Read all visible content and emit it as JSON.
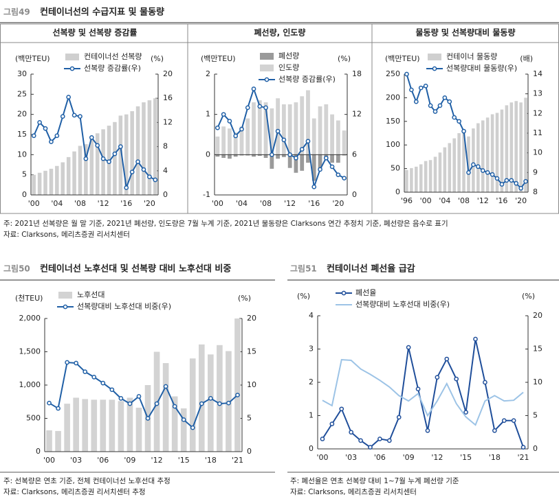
{
  "figures": [
    {
      "label": "그림49",
      "title": "컨테이너선의 수급지표 및 물동량",
      "notes": [
        "주: 2021년 선복량은 월 말 기준, 2021년 폐선량, 인도량은 7월 누계 기준, 2021년 물동량은 Clarksons 연간 추정치 기준, 폐선량은 음수로 표기",
        "자료: Clarksons, 메리츠증권 리서치센터"
      ]
    },
    {
      "label": "그림50",
      "title": "컨테이너선 노후선대 및 선복량 대비 노후선대 비중",
      "notes": [
        "주: 선복량은 연초 기준, 전체 컨테이너선 노후선대 추정",
        "자료: Clarksons, 메리츠증권 리서치센터 추정"
      ]
    },
    {
      "label": "그림51",
      "title": "컨테이너선 폐선율 급감",
      "notes": [
        "주: 폐선율은 연초 선복량 대비 1~7월 누계 폐선량 기준",
        "자료: Clarksons, 메리츠증권 리서치센터"
      ]
    }
  ],
  "chart_data": [
    {
      "type": "combo",
      "title": "선복량 및 선복량 증감률",
      "ylabel": "(백만TEU)",
      "y2label": "(%)",
      "categories": [
        "'00",
        null,
        null,
        null,
        "'04",
        null,
        null,
        null,
        "'08",
        null,
        null,
        null,
        "'12",
        null,
        null,
        null,
        "'16",
        null,
        null,
        null,
        "'20",
        null
      ],
      "ylim": [
        0,
        30
      ],
      "yticks": [
        0,
        5,
        10,
        15,
        20,
        25,
        30
      ],
      "y2lim": [
        0,
        20
      ],
      "y2ticks": [
        0,
        4,
        8,
        12,
        16,
        20
      ],
      "series": [
        {
          "name": "컨테이너선 선복량",
          "type": "bar",
          "color": "#cfcfcf",
          "values": [
            5.0,
            5.5,
            6.0,
            6.5,
            7.2,
            8.1,
            9.4,
            10.8,
            12.2,
            12.6,
            14.1,
            15.3,
            16.3,
            17.2,
            18.1,
            19.7,
            20.0,
            20.8,
            22.0,
            23.0,
            23.5,
            24.0
          ]
        },
        {
          "name": "선복량 증감률(우)",
          "type": "line",
          "axis": "y2",
          "color": "#1f5fa6",
          "values": [
            9.8,
            12.0,
            11.0,
            8.8,
            9.8,
            13.0,
            16.2,
            13.2,
            13.0,
            6.0,
            9.5,
            8.2,
            6.0,
            5.5,
            6.8,
            8.0,
            1.2,
            3.8,
            5.5,
            4.2,
            3.0,
            2.5
          ]
        }
      ]
    },
    {
      "type": "combo",
      "title": "폐선량, 인도량",
      "ylabel": "(백만TEU)",
      "y2label": "(%)",
      "categories": [
        "'00",
        null,
        null,
        null,
        "'04",
        null,
        null,
        null,
        "'08",
        null,
        null,
        null,
        "'12",
        null,
        null,
        null,
        "'16",
        null,
        null,
        null,
        "'20",
        null
      ],
      "ylim": [
        -1,
        2
      ],
      "yticks": [
        -1,
        0,
        1,
        2
      ],
      "y2lim": [
        0,
        18
      ],
      "y2ticks": [
        0,
        6,
        12,
        18
      ],
      "series": [
        {
          "name": "폐선량",
          "type": "bar",
          "color": "#9a9a9a",
          "values": [
            -0.05,
            -0.08,
            -0.1,
            -0.05,
            -0.02,
            -0.02,
            -0.05,
            -0.03,
            -0.08,
            -0.35,
            -0.1,
            -0.06,
            -0.33,
            -0.45,
            -0.4,
            -0.2,
            -0.65,
            -0.4,
            -0.1,
            -0.2,
            -0.2,
            -0.02
          ]
        },
        {
          "name": "인도량",
          "type": "bar",
          "color": "#d3d3d3",
          "values": [
            0.45,
            0.7,
            0.65,
            0.55,
            0.7,
            0.9,
            1.3,
            1.35,
            1.3,
            1.15,
            1.4,
            1.25,
            1.25,
            1.3,
            1.45,
            1.6,
            0.9,
            1.2,
            1.25,
            1.0,
            0.85,
            0.6
          ]
        },
        {
          "name": "선복량 증감률(우)",
          "type": "line",
          "axis": "y2",
          "color": "#1f5fa6",
          "values": [
            10.0,
            12.0,
            11.0,
            8.8,
            9.8,
            13.0,
            15.8,
            13.2,
            13.0,
            6.0,
            9.5,
            8.2,
            6.0,
            5.5,
            6.8,
            8.0,
            1.2,
            3.8,
            5.5,
            4.2,
            3.0,
            2.5
          ]
        }
      ]
    },
    {
      "type": "combo",
      "title": "물동량 및 선복량대비 물동량",
      "ylabel": "(백만TEU)",
      "y2label": "(배)",
      "categories": [
        "'96",
        null,
        null,
        null,
        "'00",
        null,
        null,
        null,
        "'04",
        null,
        null,
        null,
        "'08",
        null,
        null,
        null,
        "'12",
        null,
        null,
        null,
        "'16",
        null,
        null,
        null,
        "'20",
        null
      ],
      "ylim": [
        0,
        250
      ],
      "yticks": [
        0,
        50,
        100,
        150,
        200,
        250
      ],
      "y2lim": [
        8,
        14
      ],
      "y2ticks": [
        8,
        9,
        10,
        11,
        12,
        13,
        14
      ],
      "series": [
        {
          "name": "컨테이너 물동량",
          "type": "bar",
          "color": "#cfcfcf",
          "values": [
            47,
            51,
            54,
            59,
            66,
            68,
            75,
            84,
            95,
            104,
            114,
            125,
            129,
            118,
            135,
            146,
            152,
            158,
            165,
            168,
            175,
            184,
            190,
            193,
            190,
            200
          ]
        },
        {
          "name": "선복량대비 물동량(우)",
          "type": "line",
          "axis": "y2",
          "color": "#1f5fa6",
          "values": [
            14.0,
            13.2,
            12.6,
            13.3,
            13.4,
            12.4,
            12.1,
            12.4,
            12.8,
            12.6,
            11.8,
            11.6,
            11.1,
            9.0,
            9.4,
            9.3,
            9.1,
            9.0,
            8.9,
            8.7,
            8.4,
            8.6,
            8.6,
            8.45,
            8.2,
            8.55
          ]
        }
      ]
    },
    {
      "type": "combo",
      "ylabel": "(천TEU)",
      "y2label": "(%)",
      "categories": [
        "'00",
        null,
        null,
        "'03",
        null,
        null,
        "'06",
        null,
        null,
        "'09",
        null,
        null,
        "'12",
        null,
        null,
        "'15",
        null,
        null,
        "'18",
        null,
        null,
        "'21"
      ],
      "ylim": [
        0,
        2000
      ],
      "yticks": [
        0,
        500,
        {
          "value": 1000,
          "label": "1,000"
        },
        {
          "value": 1500,
          "label": "1,500"
        },
        {
          "value": 2000,
          "label": "2,000"
        }
      ],
      "y2lim": [
        0,
        20
      ],
      "y2ticks": [
        0,
        5,
        10,
        15,
        20
      ],
      "series": [
        {
          "name": "노후선대",
          "type": "bar",
          "color": "#d3d3d3",
          "values": [
            320,
            310,
            720,
            810,
            790,
            780,
            780,
            780,
            760,
            810,
            660,
            1000,
            1500,
            1330,
            830,
            650,
            1400,
            1610,
            1460,
            1600,
            1510,
            2000
          ]
        },
        {
          "name": "선복량대비 노후선대 비중(우)",
          "type": "line",
          "axis": "y2",
          "color": "#1f5fa6",
          "values": [
            7.3,
            6.5,
            13.4,
            13.3,
            12.0,
            11.2,
            10.3,
            9.3,
            8.0,
            7.2,
            8.3,
            5.0,
            7.2,
            9.8,
            6.8,
            4.8,
            3.6,
            7.2,
            8.0,
            7.2,
            7.3,
            8.5
          ]
        }
      ]
    },
    {
      "type": "combo",
      "ylabel": "(%)",
      "y2label": "(%)",
      "categories": [
        "'00",
        null,
        null,
        "'03",
        null,
        null,
        "'06",
        null,
        null,
        "'09",
        null,
        null,
        "'12",
        null,
        null,
        "'15",
        null,
        null,
        "'18",
        null,
        null,
        "'21"
      ],
      "ylim": [
        0,
        4
      ],
      "yticks": [
        0,
        1,
        2,
        3,
        4
      ],
      "y2lim": [
        0,
        20
      ],
      "y2ticks": [
        0,
        5,
        10,
        15,
        20
      ],
      "series": [
        {
          "name": "폐선율",
          "type": "line",
          "color": "#1f4e9a",
          "values": [
            0.3,
            0.75,
            1.2,
            0.5,
            0.25,
            0.05,
            0.3,
            0.25,
            0.95,
            3.05,
            1.8,
            0.55,
            2.15,
            2.7,
            2.1,
            1.1,
            3.3,
            2.0,
            0.55,
            0.85,
            0.85,
            0.05
          ]
        },
        {
          "name": "선복량대비 노후선대 비중(우)",
          "type": "line",
          "axis": "y2",
          "color": "#9cc3e6",
          "plain": true,
          "values": [
            7.3,
            6.5,
            13.4,
            13.3,
            12.0,
            11.2,
            10.3,
            9.3,
            8.0,
            7.2,
            8.3,
            5.0,
            7.2,
            9.8,
            6.8,
            4.8,
            3.6,
            7.2,
            8.0,
            7.2,
            7.3,
            8.5
          ]
        }
      ]
    }
  ]
}
